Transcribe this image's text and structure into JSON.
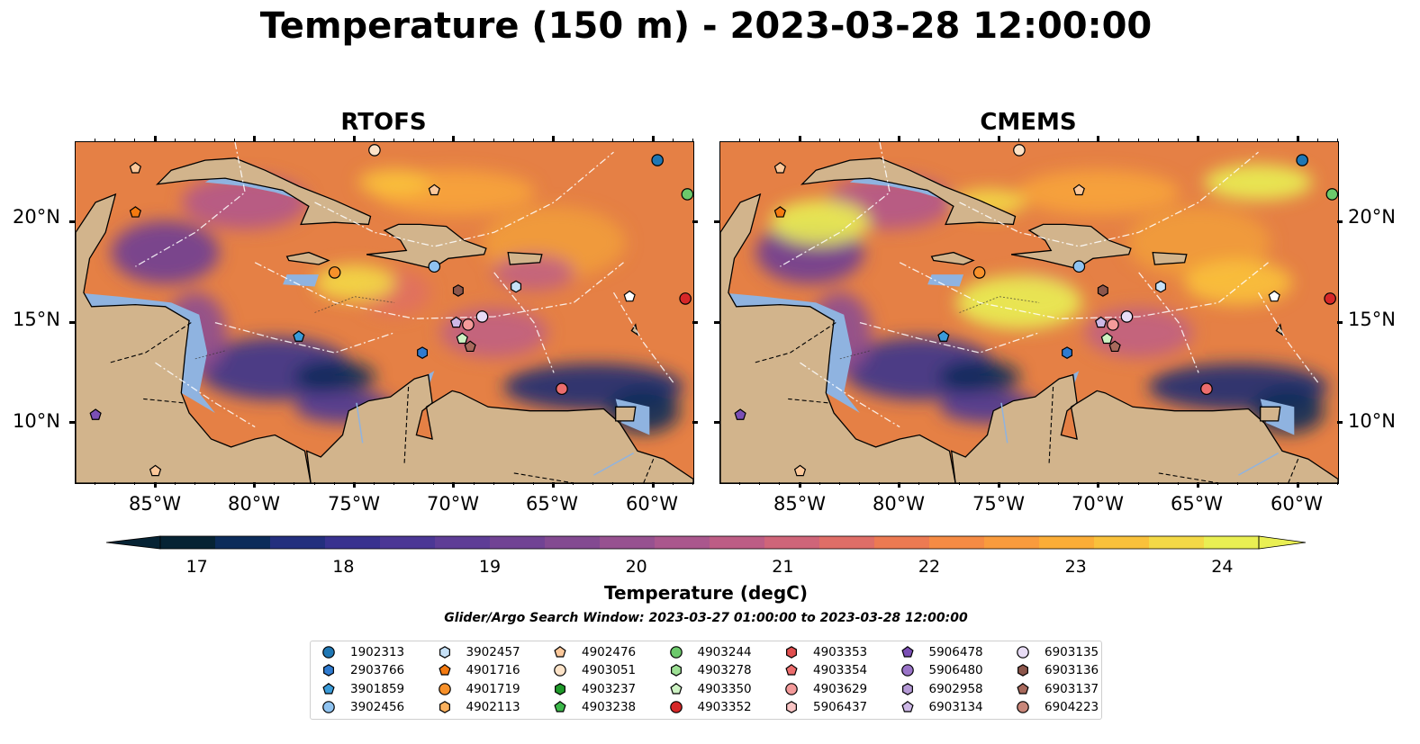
{
  "title": "Temperature (150 m) - 2023-03-28 12:00:00",
  "panels": [
    {
      "title": "RTOFS"
    },
    {
      "title": "CMEMS"
    }
  ],
  "lat_labels": [
    "20°N",
    "15°N",
    "10°N"
  ],
  "lon_labels": [
    "85°W",
    "80°W",
    "75°W",
    "70°W",
    "65°W",
    "60°W"
  ],
  "colorbar": {
    "label": "Temperature (degC)",
    "ticks": [
      "17",
      "18",
      "19",
      "20",
      "21",
      "22",
      "23",
      "24"
    ],
    "min": 16.75,
    "max": 24.25,
    "colors": [
      "#062334",
      "#0c2c5a",
      "#232f7e",
      "#38328f",
      "#4b3795",
      "#5e3d96",
      "#714394",
      "#834a91",
      "#975190",
      "#aa578d",
      "#bd5d85",
      "#cf6579",
      "#df6e67",
      "#ec7a52",
      "#f58b44",
      "#f99b3d",
      "#fbad37",
      "#f9c13b",
      "#f3d946",
      "#e9ef53"
    ]
  },
  "search_window": "Glider/Argo Search Window: 2023-03-27 01:00:00 to 2023-03-28 12:00:00",
  "legend": [
    {
      "id": "1902313",
      "marker": "circle",
      "color": "#1f77b4"
    },
    {
      "id": "2903766",
      "marker": "hexagon",
      "color": "#2f7bd0"
    },
    {
      "id": "3901859",
      "marker": "pentagon",
      "color": "#3a9bd9"
    },
    {
      "id": "3902456",
      "marker": "circle",
      "color": "#8fc3f0"
    },
    {
      "id": "3902457",
      "marker": "hexagon",
      "color": "#c6e1f7"
    },
    {
      "id": "4901716",
      "marker": "pentagon",
      "color": "#f47a10"
    },
    {
      "id": "4901719",
      "marker": "circle",
      "color": "#f8912a"
    },
    {
      "id": "4902113",
      "marker": "hexagon",
      "color": "#fbb15e"
    },
    {
      "id": "4902476",
      "marker": "pentagon",
      "color": "#fcc89a"
    },
    {
      "id": "4903051",
      "marker": "circle",
      "color": "#fde3c8"
    },
    {
      "id": "4903237",
      "marker": "hexagon",
      "color": "#1f9a2a"
    },
    {
      "id": "4903238",
      "marker": "pentagon",
      "color": "#3cb84a"
    },
    {
      "id": "4903244",
      "marker": "circle",
      "color": "#6cc96b"
    },
    {
      "id": "4903278",
      "marker": "hexagon",
      "color": "#9de094"
    },
    {
      "id": "4903350",
      "marker": "pentagon",
      "color": "#cdf2c3"
    },
    {
      "id": "4903352",
      "marker": "circle",
      "color": "#d62728"
    },
    {
      "id": "4903353",
      "marker": "hexagon",
      "color": "#e14f4f"
    },
    {
      "id": "4903354",
      "marker": "pentagon",
      "color": "#ec6d6d"
    },
    {
      "id": "4903629",
      "marker": "circle",
      "color": "#f39a9a"
    },
    {
      "id": "5906437",
      "marker": "hexagon",
      "color": "#f9c4c4"
    },
    {
      "id": "5906478",
      "marker": "pentagon",
      "color": "#7b4fb5"
    },
    {
      "id": "5906480",
      "marker": "circle",
      "color": "#9a74c8"
    },
    {
      "id": "6902958",
      "marker": "hexagon",
      "color": "#b59ad6"
    },
    {
      "id": "6903134",
      "marker": "pentagon",
      "color": "#cdb8e6"
    },
    {
      "id": "6903135",
      "marker": "circle",
      "color": "#e8dcf5"
    },
    {
      "id": "6903136",
      "marker": "hexagon",
      "color": "#8c564b"
    },
    {
      "id": "6903137",
      "marker": "pentagon",
      "color": "#a8695c"
    },
    {
      "id": "6904223",
      "marker": "circle",
      "color": "#c9877a"
    }
  ],
  "colors": {
    "land": "#d2b48c",
    "shelf": "#8fb3e0",
    "ocean_deep": "#062334"
  }
}
